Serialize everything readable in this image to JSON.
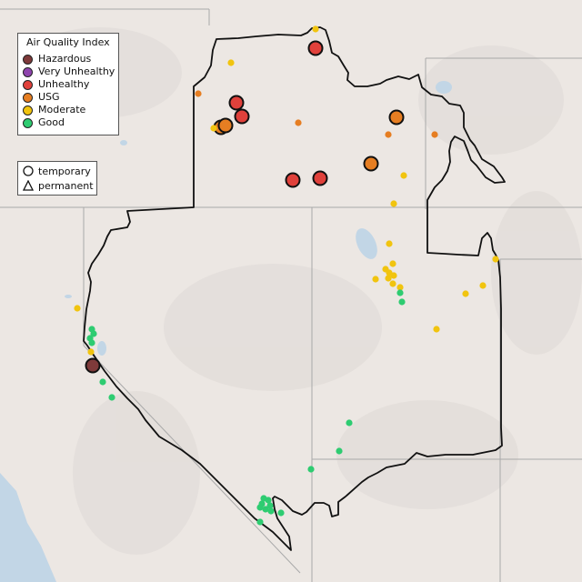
{
  "legend": {
    "title": "Air Quality Index",
    "categories": [
      {
        "label": "Hazardous",
        "color": "#7e3a3a"
      },
      {
        "label": "Very Unhealthy",
        "color": "#8e44ad"
      },
      {
        "label": "Unhealthy",
        "color": "#e0413b"
      },
      {
        "label": "USG",
        "color": "#e67e22"
      },
      {
        "label": "Moderate",
        "color": "#f1c40f"
      },
      {
        "label": "Good",
        "color": "#2ecc71"
      }
    ]
  },
  "shape_legend": {
    "items": [
      {
        "label": "temporary",
        "icon": "circle-icon"
      },
      {
        "label": "permanent",
        "icon": "triangle-icon"
      }
    ]
  },
  "map_colors": {
    "land": "#ece7e3",
    "water": "#c2d6e6",
    "boundary": "#111111",
    "state_lines": "#a9a9a9"
  }
}
